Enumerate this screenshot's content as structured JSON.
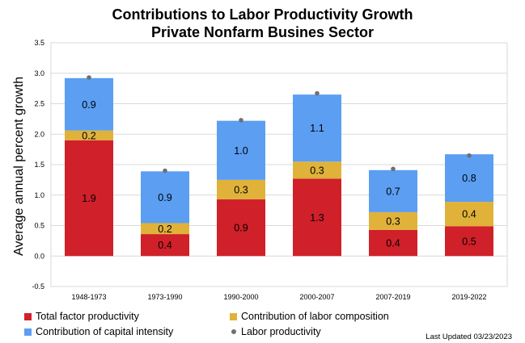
{
  "title_line1": "Contributions to Labor Productivity Growth",
  "title_line2": "Private Nonfarm Busines Sector",
  "colors": {
    "tfp": "#d0202a",
    "labor_comp": "#e0b23a",
    "capital": "#5b9ef2",
    "labor_prod": "#707070",
    "grid": "#d9d9d9"
  },
  "legend": {
    "tfp": "Total factor productivity",
    "labor_comp": "Contribution of labor composition",
    "capital": "Contribution of capital intensity",
    "labor_prod": "Labor productivity"
  },
  "last_updated": "Last Updated 03/23/2023",
  "chart_data": {
    "type": "bar",
    "stacked": true,
    "categories": [
      "1948-1973",
      "1973-1990",
      "1990-2000",
      "2000-2007",
      "2007-2019",
      "2019-2022"
    ],
    "series": [
      {
        "name": "Total factor productivity",
        "values": [
          1.9,
          0.4,
          0.9,
          1.3,
          0.4,
          0.5
        ],
        "labels": [
          "1.9",
          "0.4",
          "0.9",
          "1.3",
          "0.4",
          "0.5"
        ],
        "bar_values": [
          1.9,
          0.36,
          0.93,
          1.27,
          0.43,
          0.49
        ]
      },
      {
        "name": "Contribution of labor composition",
        "values": [
          0.2,
          0.2,
          0.3,
          0.3,
          0.3,
          0.4
        ],
        "labels": [
          "0.2",
          "0.2",
          "0.3",
          "0.3",
          "0.3",
          "0.4"
        ],
        "bar_values": [
          0.16,
          0.18,
          0.32,
          0.28,
          0.29,
          0.4
        ]
      },
      {
        "name": "Contribution of capital intensity",
        "values": [
          0.9,
          0.9,
          1.0,
          1.1,
          0.7,
          0.8
        ],
        "labels": [
          "0.9",
          "0.9",
          "1.0",
          "1.1",
          "0.7",
          "0.8"
        ],
        "bar_values": [
          0.86,
          0.85,
          0.97,
          1.1,
          0.69,
          0.78
        ]
      }
    ],
    "points": {
      "name": "Labor productivity",
      "values": [
        2.93,
        1.4,
        2.23,
        2.67,
        1.43,
        1.65
      ]
    },
    "ylabel": "Average annual percent growth",
    "ylim": [
      -0.5,
      3.5
    ],
    "yticks": [
      "-0.5",
      "0.0",
      "0.5",
      "1.0",
      "1.5",
      "2.0",
      "2.5",
      "3.0",
      "3.5"
    ],
    "grid": true,
    "legend_position": "bottom"
  }
}
